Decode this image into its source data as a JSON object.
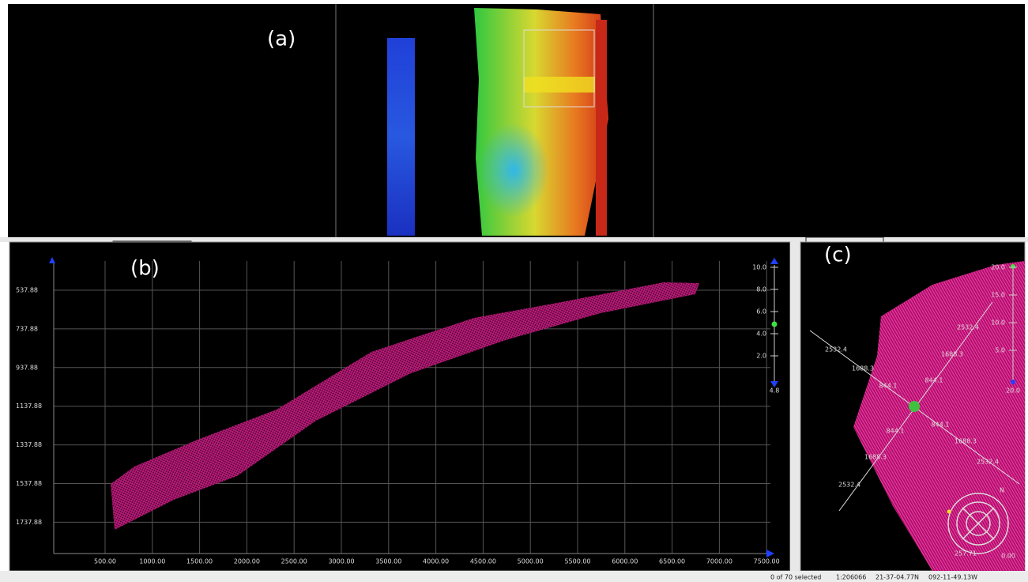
{
  "panels": {
    "a": {
      "label": "(a)"
    },
    "b": {
      "label": "(b)",
      "y_labels": [
        "537.88",
        "737.88",
        "937.88",
        "1137.88",
        "1337.88",
        "1537.88",
        "1737.88"
      ],
      "x_labels": [
        "500.00",
        "1000.00",
        "1500.00",
        "2000.00",
        "2500.00",
        "3000.00",
        "3500.00",
        "4000.00",
        "4500.00",
        "5000.00",
        "5500.00",
        "6000.00",
        "6500.00",
        "7000.00",
        "7500.00"
      ],
      "scale_labels": [
        "10.0",
        "8.0",
        "6.0",
        "4.0",
        "2.0"
      ],
      "scale_value": "4.8"
    },
    "c": {
      "label": "(c)",
      "scale_labels": [
        "20.0",
        "15.0",
        "10.0",
        "5.0"
      ],
      "scale_value": "20.0",
      "arms": {
        "upper_left": [
          "2532.4",
          "1688.3",
          "844.1"
        ],
        "upper_right": [
          "2532.4",
          "1688.3",
          "844.1"
        ],
        "lower_left": [
          "844.1",
          "1688.3",
          "2532.4"
        ],
        "lower_right": [
          "844.1",
          "1688.3",
          "2532.4"
        ]
      },
      "compass": {
        "north": "N",
        "bearing": "257.71",
        "angle": "0.00"
      }
    }
  },
  "status_bar": [
    "0 of 70 selected",
    "1:206066",
    "21-37-04.77N",
    "092-11-49.13W"
  ]
}
